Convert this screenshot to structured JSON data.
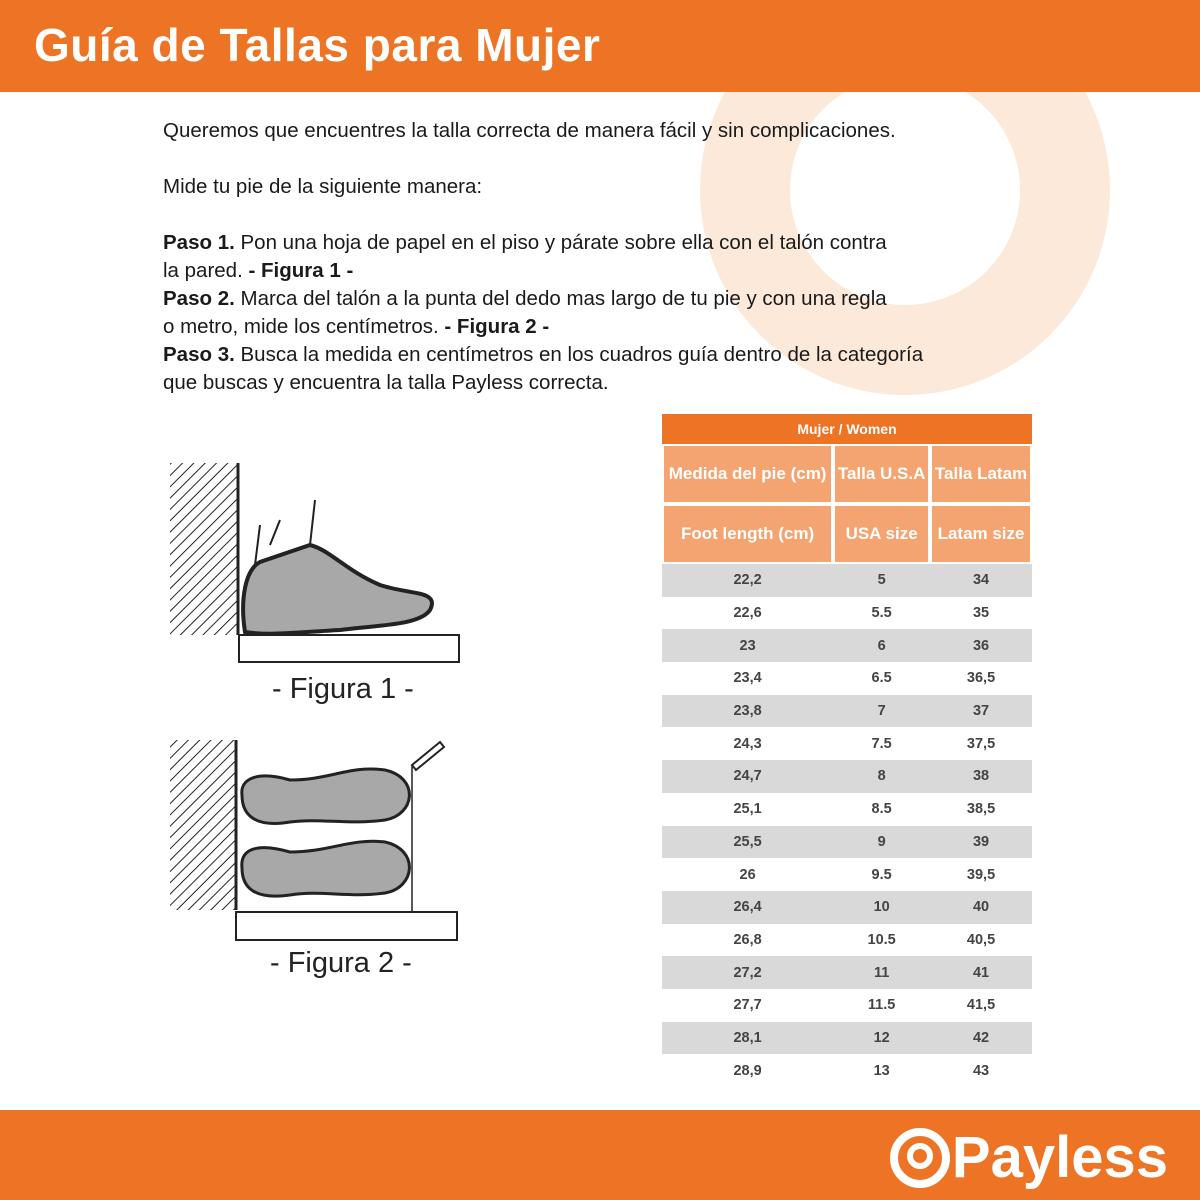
{
  "header": {
    "title": "Guía de Tallas para Mujer"
  },
  "intro": {
    "line1": "Queremos que encuentres la talla correcta de manera fácil y sin complicaciones.",
    "line2": "Mide tu pie de la siguiente manera:",
    "steps": [
      {
        "label": "Paso 1.",
        "text": " Pon una hoja de papel en el piso y párate sobre ella con el talón contra",
        "text2": "la pared. ",
        "fig": "- Figura 1 -"
      },
      {
        "label": "Paso 2.",
        "text": " Marca del talón a la punta del dedo mas largo de tu pie y con una regla",
        "text2": "o metro, mide los centímetros. ",
        "fig": "- Figura 2 -"
      },
      {
        "label": "Paso 3.",
        "text": " Busca la medida en centímetros en los cuadros guía dentro de la categoría",
        "text2": "que buscas y encuentra la talla Payless correcta."
      }
    ]
  },
  "figures": {
    "fig1": "- Figura 1 -",
    "fig2": "- Figura 2 -"
  },
  "table": {
    "title": "Mujer / Women",
    "headers_es": [
      "Medida del pie (cm)",
      "Talla U.S.A",
      "Talla Latam"
    ],
    "headers_en": [
      "Foot length (cm)",
      "USA size",
      "Latam size"
    ],
    "rows": [
      [
        "22,2",
        "5",
        "34"
      ],
      [
        "22,6",
        "5.5",
        "35"
      ],
      [
        "23",
        "6",
        "36"
      ],
      [
        "23,4",
        "6.5",
        "36,5"
      ],
      [
        "23,8",
        "7",
        "37"
      ],
      [
        "24,3",
        "7.5",
        "37,5"
      ],
      [
        "24,7",
        "8",
        "38"
      ],
      [
        "25,1",
        "8.5",
        "38,5"
      ],
      [
        "25,5",
        "9",
        "39"
      ],
      [
        "26",
        "9.5",
        "39,5"
      ],
      [
        "26,4",
        "10",
        "40"
      ],
      [
        "26,8",
        "10.5",
        "40,5"
      ],
      [
        "27,2",
        "11",
        "41"
      ],
      [
        "27,7",
        "11.5",
        "41,5"
      ],
      [
        "28,1",
        "12",
        "42"
      ],
      [
        "28,9",
        "13",
        "43"
      ]
    ]
  },
  "footer": {
    "logo": "Payless"
  },
  "colors": {
    "brand": "#ec7424",
    "header_cell": "#f4a470",
    "stripe": "#d9d9d9"
  }
}
